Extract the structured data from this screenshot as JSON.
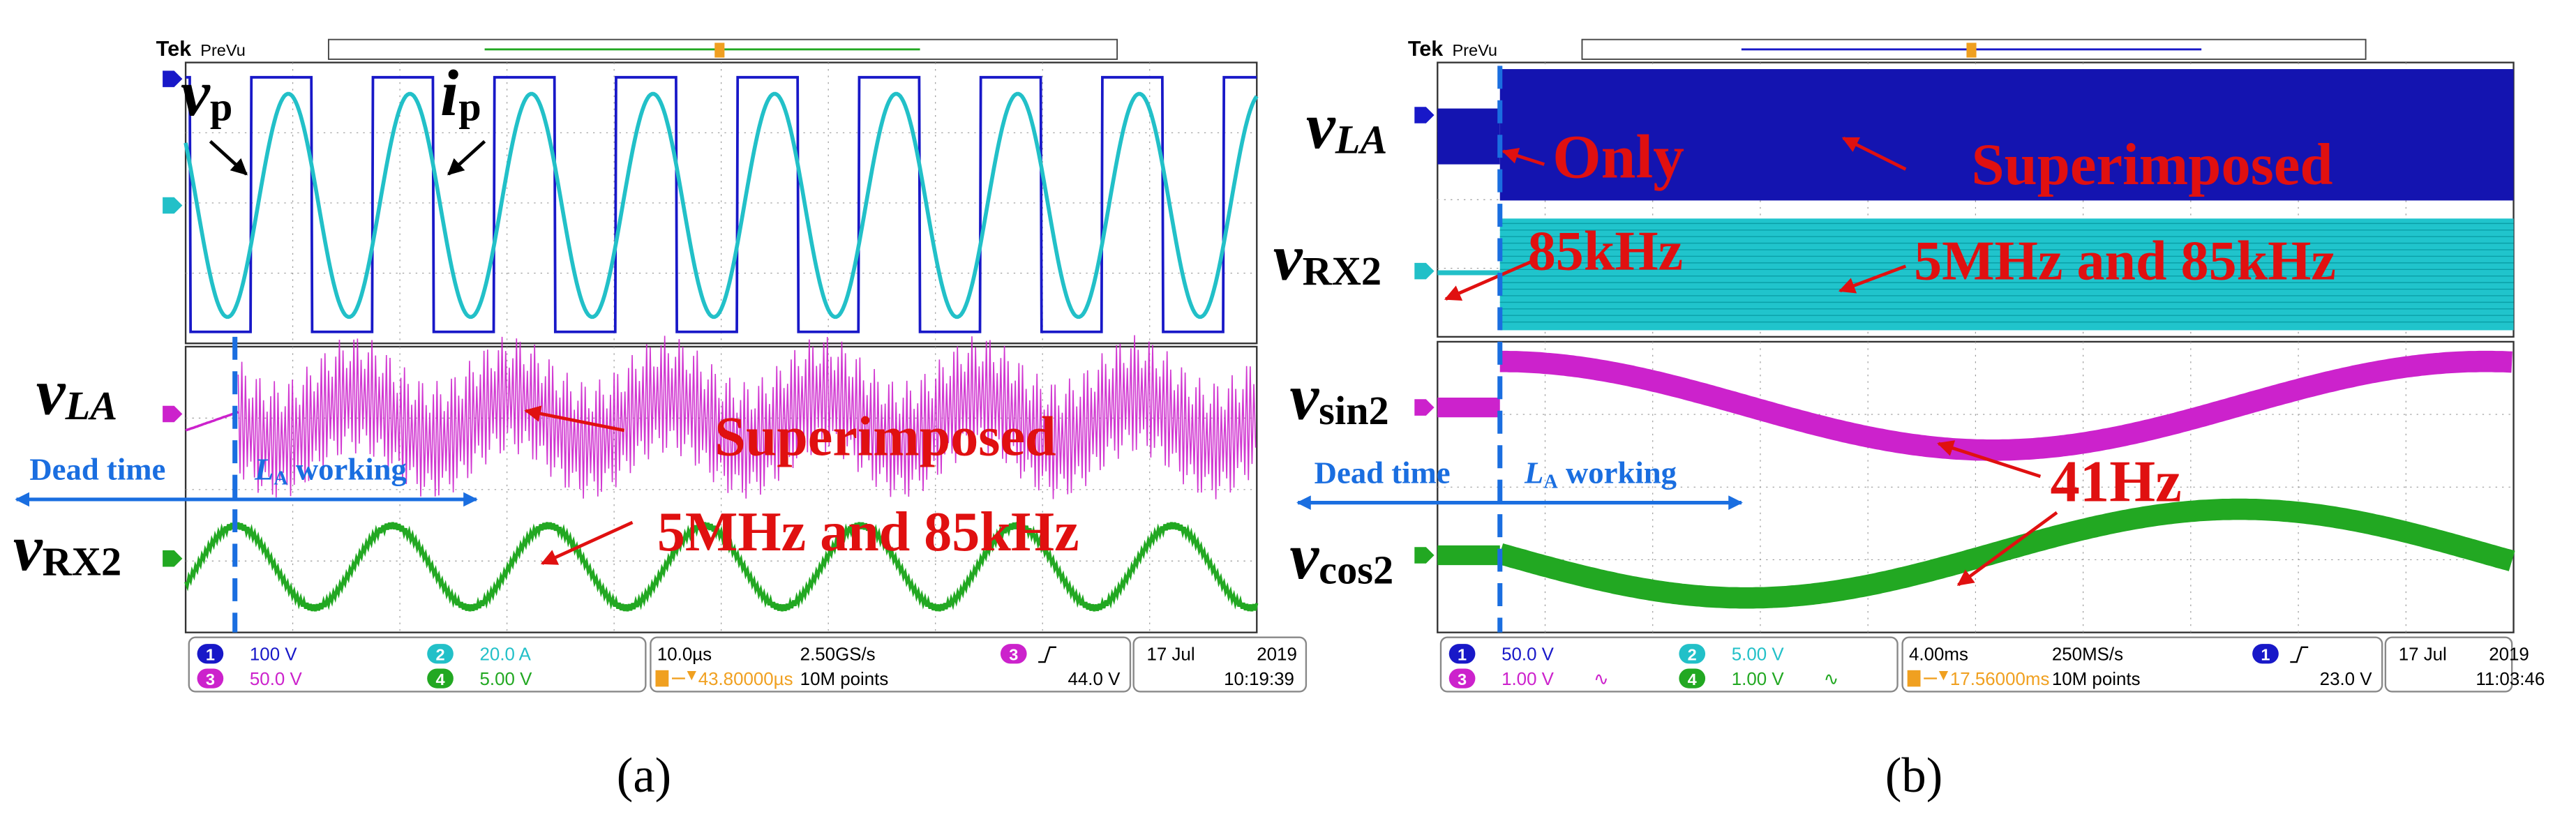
{
  "panels": [
    {
      "header": {
        "brand": "Tek",
        "mode": "PreVu"
      },
      "labels": [
        {
          "main": "v",
          "sub": "p"
        },
        {
          "main": "i",
          "sub": "p"
        },
        {
          "main": "v",
          "sub": "LA"
        },
        {
          "main": "v",
          "sub": "RX2"
        }
      ],
      "dead_time": "Dead time",
      "working": {
        "main": "L",
        "sub": "A",
        "rest": " working"
      },
      "annotations": [
        "Superimposed",
        "5MHz and 85kHz"
      ],
      "status": {
        "channels": [
          {
            "id": "1",
            "scale": "100 V"
          },
          {
            "id": "2",
            "scale": "20.0 A"
          },
          {
            "id": "3",
            "scale": "50.0 V"
          },
          {
            "id": "4",
            "scale": "5.00 V"
          }
        ],
        "timebase": "10.0µs",
        "sample_rate": "2.50GS/s",
        "trigger_position": "43.80000µs",
        "record_length": "10M points",
        "trigger_source": "3",
        "trigger_level": "44.0 V",
        "date": "17 Jul",
        "year": "2019",
        "time": "10:19:39"
      },
      "caption": "(a)"
    },
    {
      "header": {
        "brand": "Tek",
        "mode": "PreVu"
      },
      "labels": [
        {
          "main": "v",
          "sub": "LA"
        },
        {
          "main": "v",
          "sub": "RX2"
        },
        {
          "main": "v",
          "sub": "sin2"
        },
        {
          "main": "v",
          "sub": "cos2"
        }
      ],
      "dead_time": "Dead time",
      "working": {
        "main": "L",
        "sub": "A",
        "rest": " working"
      },
      "annotations": [
        "Only",
        "Superimposed",
        "85kHz",
        "5MHz and 85kHz",
        "41Hz"
      ],
      "status": {
        "channels": [
          {
            "id": "1",
            "scale": "50.0 V"
          },
          {
            "id": "2",
            "scale": "5.00 V"
          },
          {
            "id": "3",
            "scale": "1.00 V",
            "coupling": "∿"
          },
          {
            "id": "4",
            "scale": "1.00 V",
            "coupling": "∿"
          }
        ],
        "timebase": "4.00ms",
        "sample_rate": "250MS/s",
        "trigger_position": "17.56000ms",
        "record_length": "10M points",
        "trigger_source": "1",
        "trigger_level": "23.0 V",
        "date": "17 Jul",
        "year": "2019",
        "time": "11:03:46"
      },
      "caption": "(b)"
    }
  ]
}
